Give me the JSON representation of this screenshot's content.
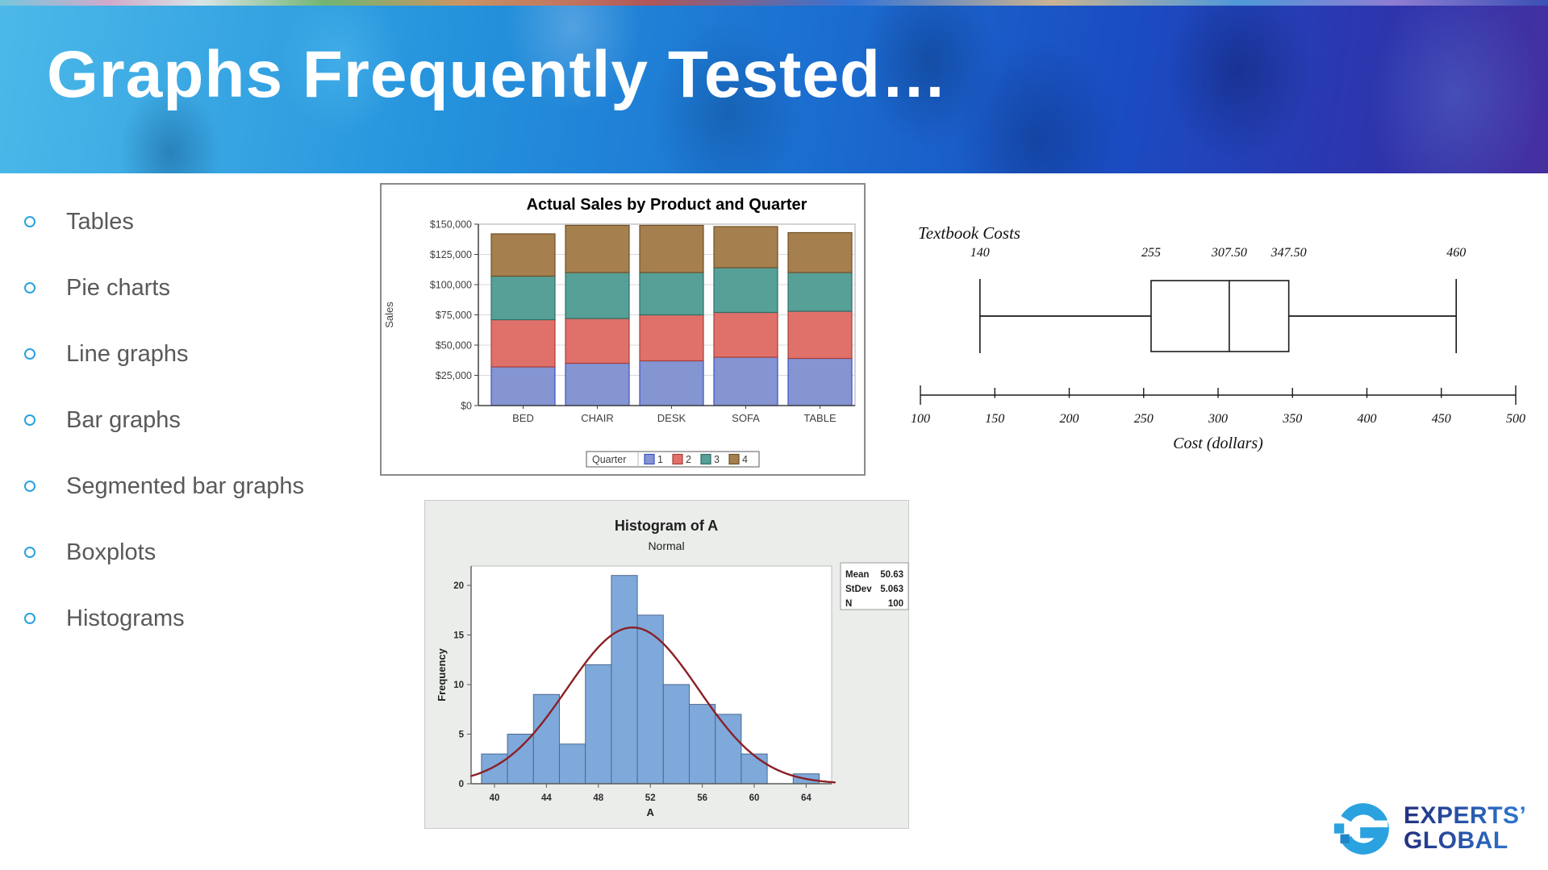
{
  "slide": {
    "title": "Graphs Frequently Tested…",
    "background": "#ffffff",
    "header": {
      "gradient_left": "#4cb9e9",
      "gradient_mid": "#1b6fd0",
      "gradient_right": "#4630a0",
      "title_color": "#ffffff"
    }
  },
  "bullet_list": {
    "bullet_color": "#2aa2df",
    "text_color": "#595959",
    "items": [
      "Tables",
      "Pie charts",
      "Line graphs",
      "Bar graphs",
      "Segmented bar graphs",
      "Boxplots",
      "Histograms"
    ]
  },
  "logo": {
    "line1": "EXPERTS’",
    "line2": "GLOBAL",
    "mark_color": "#2aa2df",
    "mark_accent_color": "#1f85c8",
    "text_gradient_from": "#24317e",
    "text_gradient_to": "#2e7ad6"
  },
  "chart_data": [
    {
      "id": "sales-stacked-bar",
      "type": "bar",
      "stacked": true,
      "title": "Actual Sales by Product and Quarter",
      "ylabel": "Sales",
      "categories": [
        "BED",
        "CHAIR",
        "DESK",
        "SOFA",
        "TABLE"
      ],
      "legend_title": "Quarter",
      "legend_position": "bottom",
      "grid": true,
      "ylim": [
        0,
        150000
      ],
      "ytick_step": 25000,
      "ytick_prefix": "$",
      "series": [
        {
          "name": "1",
          "fill": "#8595d2",
          "stroke": "#3b50c8",
          "values": [
            32000,
            35000,
            37000,
            40000,
            39000
          ]
        },
        {
          "name": "2",
          "fill": "#e0716a",
          "stroke": "#a93f37",
          "values": [
            39000,
            37000,
            38000,
            37000,
            39000
          ]
        },
        {
          "name": "3",
          "fill": "#57a098",
          "stroke": "#2f6e67",
          "values": [
            36000,
            38000,
            35000,
            37000,
            32000
          ]
        },
        {
          "name": "4",
          "fill": "#a67f4e",
          "stroke": "#6e5128",
          "values": [
            35000,
            39000,
            39000,
            34000,
            33000
          ]
        }
      ]
    },
    {
      "id": "textbook-costs-boxplot",
      "type": "boxplot",
      "title": "Textbook Costs",
      "xlabel": "Cost (dollars)",
      "min": 140,
      "q1": 255,
      "median": 307.5,
      "q3": 347.5,
      "max": 460,
      "point_labels": [
        "140",
        "255",
        "307.50",
        "347.50",
        "460"
      ],
      "axis_range": [
        100,
        500
      ],
      "axis_ticks": [
        100,
        150,
        200,
        250,
        300,
        350,
        400,
        450,
        500
      ],
      "line_color": "#1a1a1a"
    },
    {
      "id": "histogram-of-a",
      "type": "histogram",
      "title": "Histogram of A",
      "subtitle": "Normal",
      "xlabel": "A",
      "ylabel": "Frequency",
      "bin_start": 39,
      "bin_width": 2,
      "frequencies": [
        3,
        5,
        9,
        4,
        12,
        21,
        17,
        10,
        8,
        7,
        3,
        0,
        1
      ],
      "xticks": [
        40,
        44,
        48,
        52,
        56,
        60,
        64
      ],
      "yticks": [
        0,
        5,
        10,
        15,
        20
      ],
      "ylim": [
        0,
        22
      ],
      "bar_fill": "#7ea9da",
      "bar_stroke": "#4e688e",
      "curve": {
        "label": "Normal",
        "mean": 50.63,
        "stdev": 5.063,
        "n": 100,
        "color": "#8b2026"
      },
      "stats_box": {
        "rows": [
          [
            "Mean",
            "50.63"
          ],
          [
            "StDev",
            "5.063"
          ],
          [
            "N",
            "100"
          ]
        ]
      },
      "panel_color": "#ebedeb"
    }
  ]
}
